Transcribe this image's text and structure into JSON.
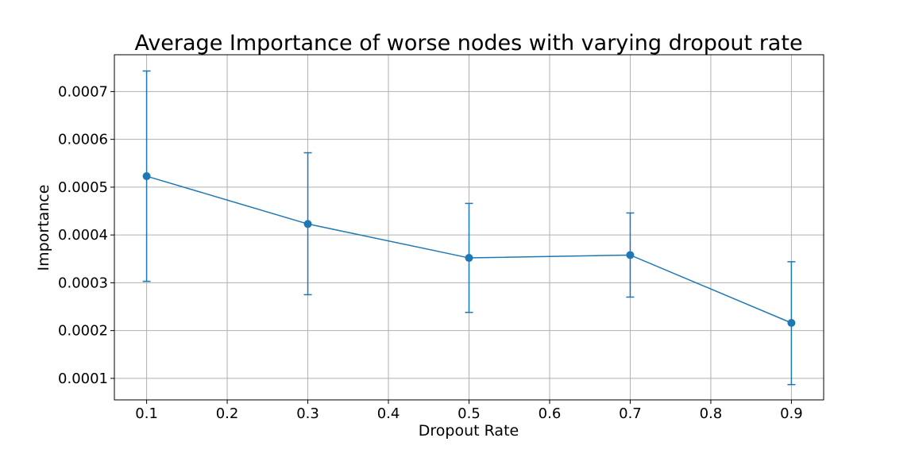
{
  "chart_data": {
    "type": "line",
    "title": "Average Importance of worse nodes with varying dropout rate",
    "xlabel": "Dropout Rate",
    "ylabel": "Importance",
    "xlim": [
      0.06,
      0.94
    ],
    "ylim": [
      5.5e-05,
      0.000777
    ],
    "x_ticks": [
      0.1,
      0.2,
      0.3,
      0.4,
      0.5,
      0.6,
      0.7,
      0.8,
      0.9
    ],
    "x_tick_labels": [
      "0.1",
      "0.2",
      "0.3",
      "0.4",
      "0.5",
      "0.6",
      "0.7",
      "0.8",
      "0.9"
    ],
    "y_ticks": [
      0.0001,
      0.0002,
      0.0003,
      0.0004,
      0.0005,
      0.0006,
      0.0007
    ],
    "y_tick_labels": [
      "0.0001",
      "0.0002",
      "0.0003",
      "0.0004",
      "0.0005",
      "0.0006",
      "0.0007"
    ],
    "grid": true,
    "series": [
      {
        "color": "#1f77b4",
        "x": [
          0.1,
          0.3,
          0.5,
          0.7,
          0.9
        ],
        "y": [
          0.000523,
          0.000423,
          0.000352,
          0.000358,
          0.000216
        ],
        "yerr_lower": [
          0.000303,
          0.000275,
          0.000238,
          0.00027,
          8.7e-05
        ],
        "yerr_upper": [
          0.000743,
          0.000572,
          0.000466,
          0.000446,
          0.000344
        ]
      }
    ]
  }
}
